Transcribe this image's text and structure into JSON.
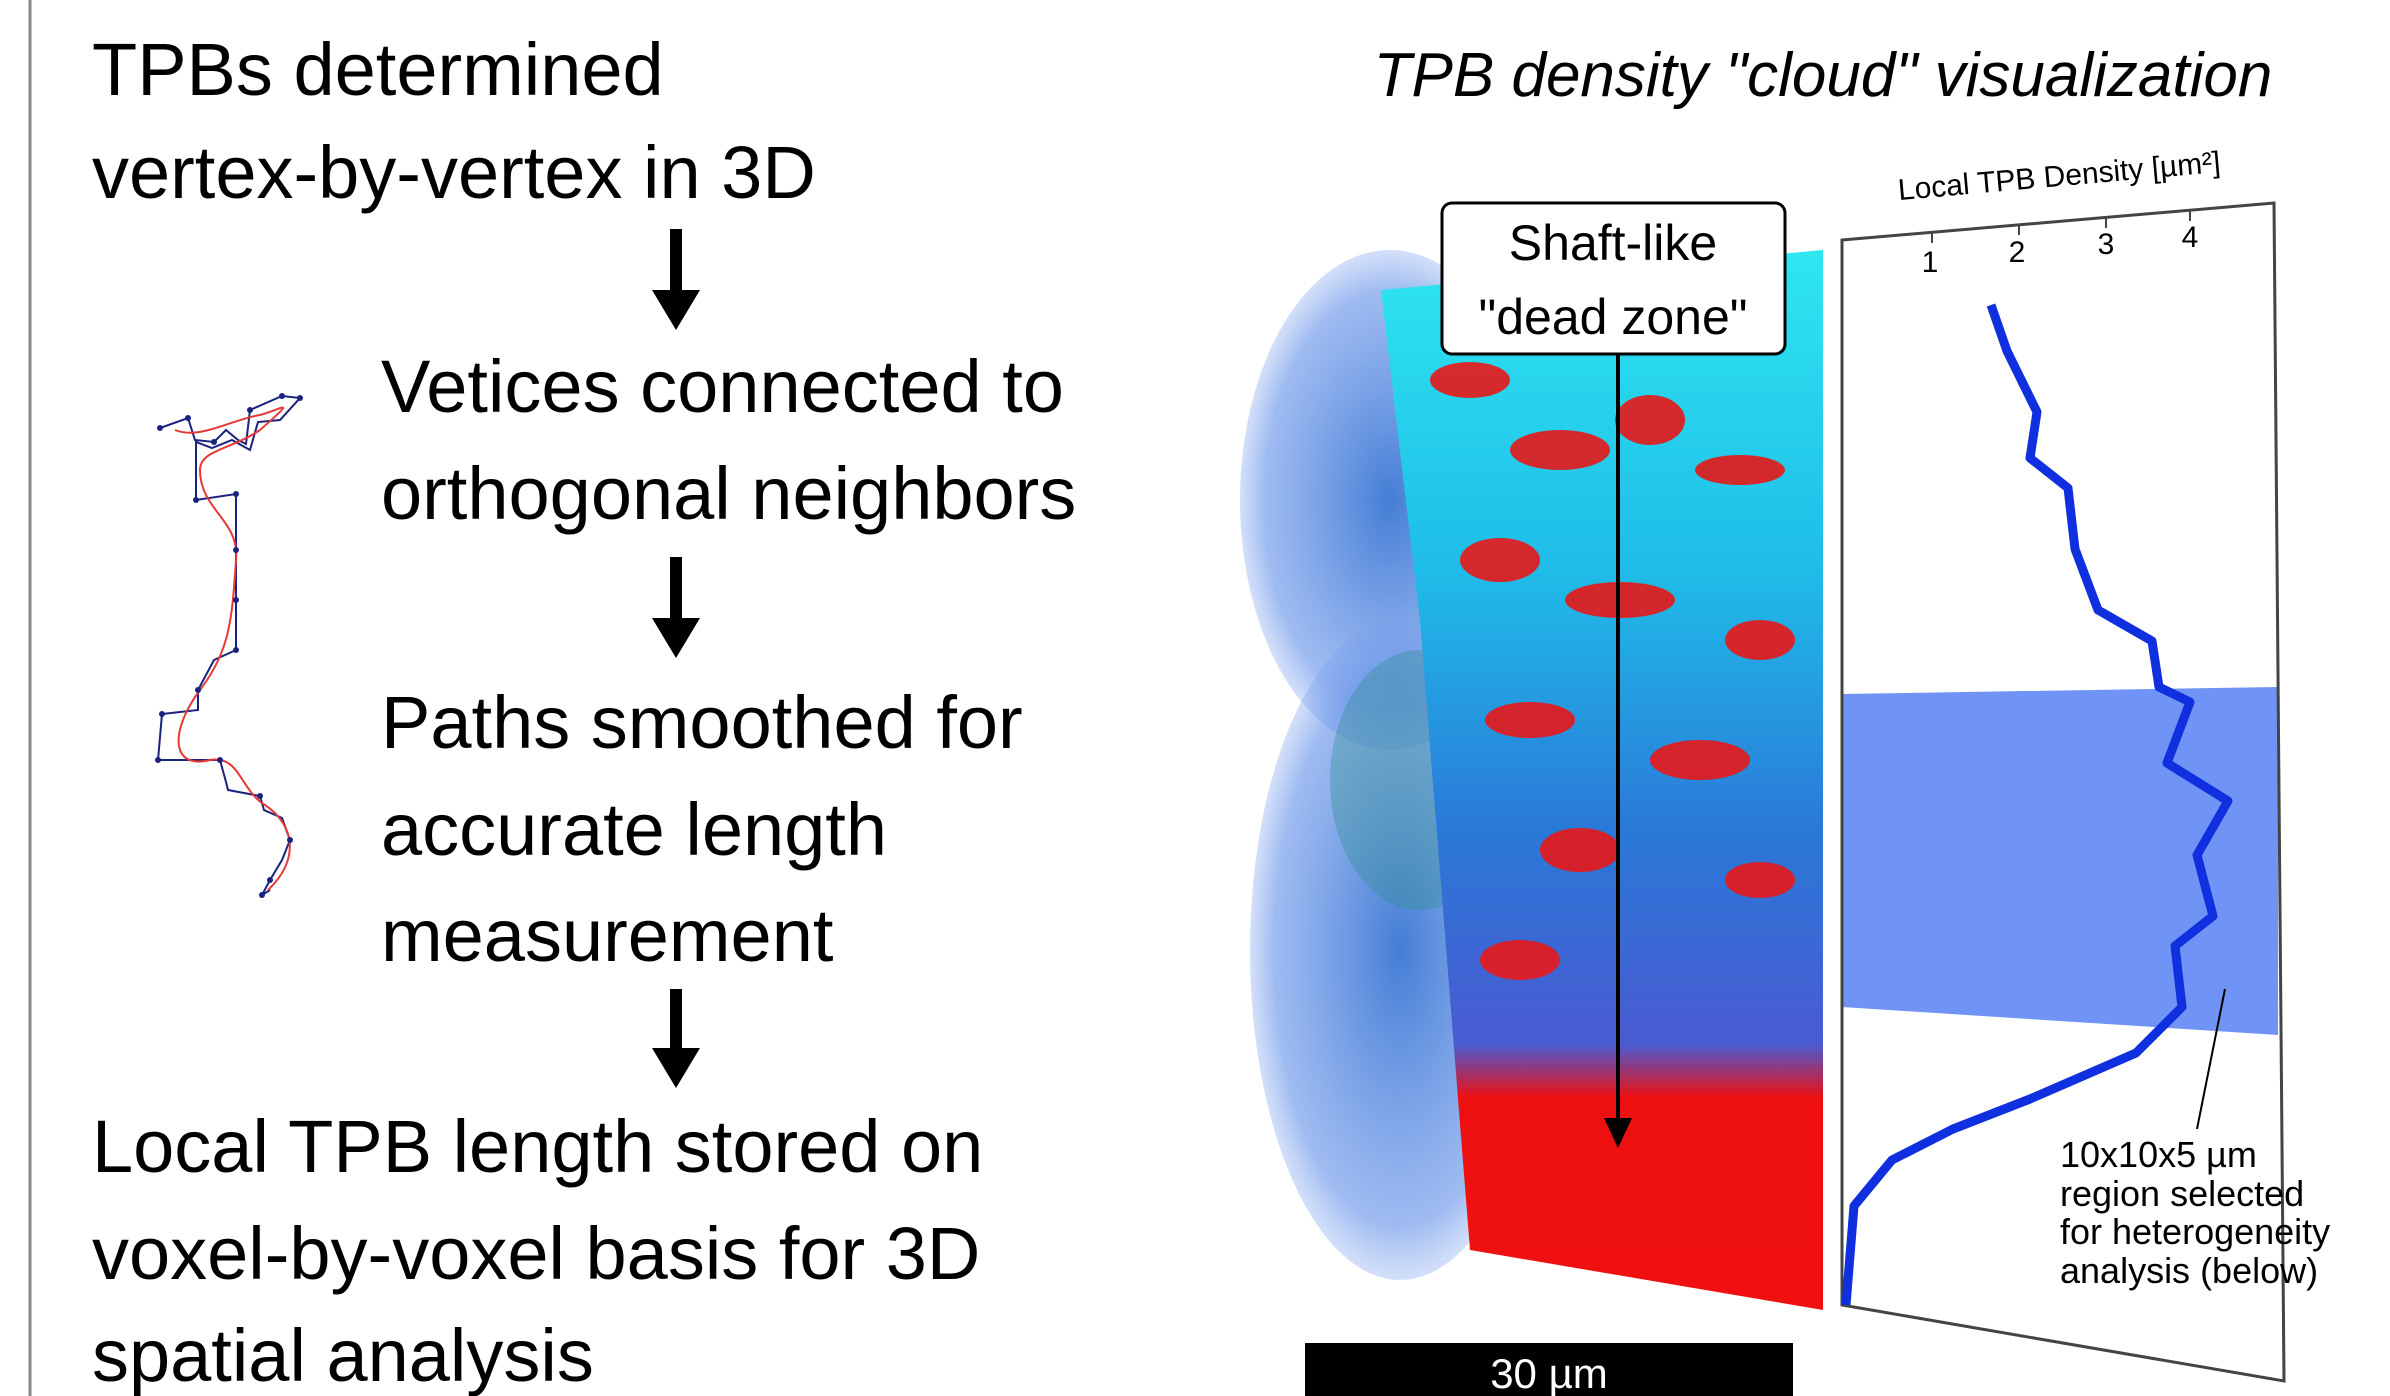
{
  "left": {
    "intro": [
      "TPBs determined",
      "vertex-by-vertex in 3D"
    ],
    "steps": [
      [
        "Vetices connected to",
        "orthogonal neighbors"
      ],
      [
        "Paths smoothed for",
        "accurate length",
        "measurement"
      ]
    ],
    "result": [
      "Local TPB length stored on",
      "voxel-by-voxel basis for 3D",
      "spatial analysis"
    ]
  },
  "right": {
    "title": "TPB density \"cloud\" visualization",
    "callout": [
      "Shaft-like",
      "\"dead zone\""
    ],
    "scale_bar": "30 µm",
    "plot": {
      "axis_title": "Local TPB Density [µm²]",
      "ticks": [
        1,
        2,
        3,
        4
      ]
    },
    "annotation": [
      "10x10x5 µm",
      "region selected",
      "for heterogeneity",
      "analysis (below)"
    ]
  }
}
